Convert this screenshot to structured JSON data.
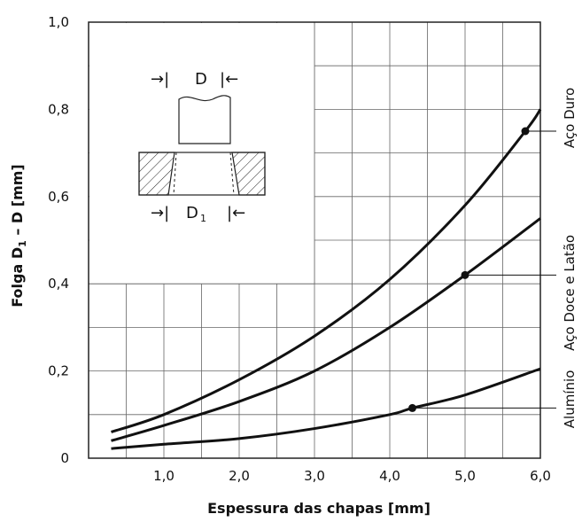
{
  "chart_data": {
    "type": "line",
    "xlabel": "Espessura das chapas [mm]",
    "ylabel_main": "Folga D",
    "ylabel_sub": "1",
    "ylabel_tail": " – D [mm]",
    "xlim": [
      0,
      6.0
    ],
    "ylim": [
      0,
      1.0
    ],
    "x_ticks": [
      "1,0",
      "2,0",
      "3,0",
      "4,0",
      "5,0",
      "6,0"
    ],
    "x_tick_values": [
      1,
      2,
      3,
      4,
      5,
      6
    ],
    "y_ticks": [
      "0",
      "0,2",
      "0,4",
      "0,6",
      "0,8",
      "1,0"
    ],
    "y_tick_values": [
      0,
      0.2,
      0.4,
      0.6,
      0.8,
      1.0
    ],
    "grid": true,
    "series": [
      {
        "name": "Aço Duro",
        "x": [
          0.3,
          1.0,
          2.0,
          3.0,
          4.0,
          5.0,
          5.8,
          6.0
        ],
        "y": [
          0.06,
          0.1,
          0.18,
          0.28,
          0.41,
          0.58,
          0.75,
          0.8
        ],
        "marker": {
          "x": 5.8,
          "y": 0.75
        }
      },
      {
        "name": "Aço Doce e Latão",
        "x": [
          0.3,
          1.0,
          2.0,
          3.0,
          4.0,
          5.0,
          6.0
        ],
        "y": [
          0.04,
          0.075,
          0.13,
          0.2,
          0.3,
          0.42,
          0.55
        ],
        "marker": {
          "x": 5.0,
          "y": 0.42
        }
      },
      {
        "name": "Alumínio",
        "x": [
          0.3,
          1.0,
          2.0,
          3.0,
          4.0,
          4.3,
          5.0,
          6.0
        ],
        "y": [
          0.022,
          0.032,
          0.045,
          0.068,
          0.1,
          0.115,
          0.145,
          0.205
        ],
        "marker": {
          "x": 4.3,
          "y": 0.115
        }
      }
    ],
    "inset": {
      "top_label_left": "→|",
      "top_label_mid": "D",
      "top_label_right": "|←",
      "bottom_label_left": "→|",
      "bottom_label_mid": "D",
      "bottom_label_sub": "1",
      "bottom_label_right": "|←"
    }
  }
}
